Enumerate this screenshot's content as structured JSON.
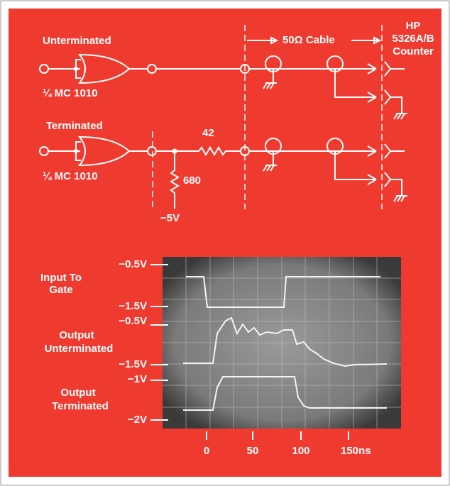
{
  "circuit": {
    "unterminated": {
      "label": "Unterminated",
      "gate": "¼ MC 1010"
    },
    "terminated": {
      "label": "Terminated",
      "gate": "¼ MC 1010",
      "series_resistor": "42",
      "shunt_resistor": "680",
      "supply": "−5V"
    },
    "cable": "50Ω Cable",
    "counter": [
      "HP",
      "5326A/B",
      "Counter"
    ]
  },
  "scope": {
    "labels": [
      "−0.5V",
      "Input To",
      "Gate",
      "−1.5V",
      "−0.5V",
      "Output",
      "Unterminated",
      "−1.5V",
      "−1V",
      "Output",
      "Terminated",
      "−2V"
    ],
    "x_axis": [
      "0",
      "50",
      "100",
      "150ns"
    ]
  }
}
